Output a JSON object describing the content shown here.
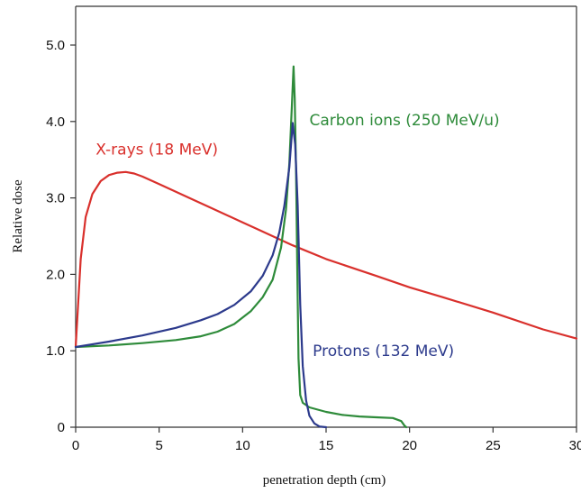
{
  "chart_data": {
    "type": "line",
    "title": "",
    "xlabel": "penetration depth (cm)",
    "ylabel": "Relative dose",
    "xlim": [
      0,
      30
    ],
    "ylim": [
      0,
      5.5
    ],
    "x_ticks": [
      0,
      5,
      10,
      15,
      20,
      25,
      30
    ],
    "x_tick_labels": [
      "0",
      "5",
      "10",
      "15",
      "20",
      "25",
      "30"
    ],
    "y_ticks": [
      0,
      1.0,
      2.0,
      3.0,
      4.0,
      5.0
    ],
    "y_tick_labels": [
      "0",
      "1.0",
      "2.0",
      "3.0",
      "4.0",
      "5.0"
    ],
    "grid": false,
    "series": [
      {
        "name": "X-rays (18 MeV)",
        "color": "#d9302c",
        "x": [
          0,
          0.3,
          0.6,
          1.0,
          1.5,
          2.0,
          2.5,
          3.0,
          3.5,
          4.0,
          5.0,
          6.0,
          7.0,
          8.0,
          10.0,
          12.0,
          13.0,
          15.0,
          18.0,
          20.0,
          22.0,
          25.0,
          28.0,
          30.0
        ],
        "y": [
          1.05,
          2.2,
          2.75,
          3.05,
          3.22,
          3.3,
          3.33,
          3.34,
          3.32,
          3.28,
          3.18,
          3.08,
          2.98,
          2.88,
          2.68,
          2.48,
          2.38,
          2.2,
          1.98,
          1.83,
          1.7,
          1.5,
          1.28,
          1.16
        ]
      },
      {
        "name": "Carbon ions (250 MeV/u)",
        "color": "#2e8b3a",
        "x": [
          0,
          2.0,
          4.0,
          6.0,
          7.5,
          8.5,
          9.5,
          10.5,
          11.2,
          11.8,
          12.3,
          12.6,
          12.8,
          12.95,
          13.05,
          13.12,
          13.2,
          13.28,
          13.35,
          13.45,
          13.6,
          14.0,
          15.0,
          16.0,
          17.0,
          18.0,
          19.0,
          19.5,
          19.7,
          19.8
        ],
        "y": [
          1.05,
          1.07,
          1.1,
          1.14,
          1.19,
          1.25,
          1.35,
          1.52,
          1.7,
          1.93,
          2.35,
          2.85,
          3.45,
          4.2,
          4.72,
          4.3,
          3.4,
          2.0,
          0.9,
          0.42,
          0.32,
          0.26,
          0.2,
          0.16,
          0.14,
          0.13,
          0.12,
          0.08,
          0.02,
          0.0
        ]
      },
      {
        "name": "Protons (132 MeV)",
        "color": "#2c3a8c",
        "x": [
          0,
          2.0,
          4.0,
          6.0,
          7.5,
          8.5,
          9.5,
          10.5,
          11.2,
          11.8,
          12.2,
          12.5,
          12.8,
          13.0,
          13.15,
          13.3,
          13.45,
          13.6,
          13.8,
          14.0,
          14.3,
          14.6,
          15.0
        ],
        "y": [
          1.05,
          1.12,
          1.2,
          1.3,
          1.4,
          1.48,
          1.6,
          1.78,
          1.98,
          2.25,
          2.55,
          2.9,
          3.4,
          3.98,
          3.7,
          2.9,
          1.6,
          0.8,
          0.35,
          0.15,
          0.05,
          0.01,
          0.0
        ]
      }
    ],
    "annotations": [
      {
        "series": 0,
        "text": "X-rays (18 MeV)",
        "x": 1.2,
        "y": 3.57
      },
      {
        "series": 1,
        "text": "Carbon ions (250 MeV/u)",
        "x": 14.0,
        "y": 3.95
      },
      {
        "series": 2,
        "text": "Protons (132 MeV)",
        "x": 14.2,
        "y": 0.93
      }
    ]
  }
}
